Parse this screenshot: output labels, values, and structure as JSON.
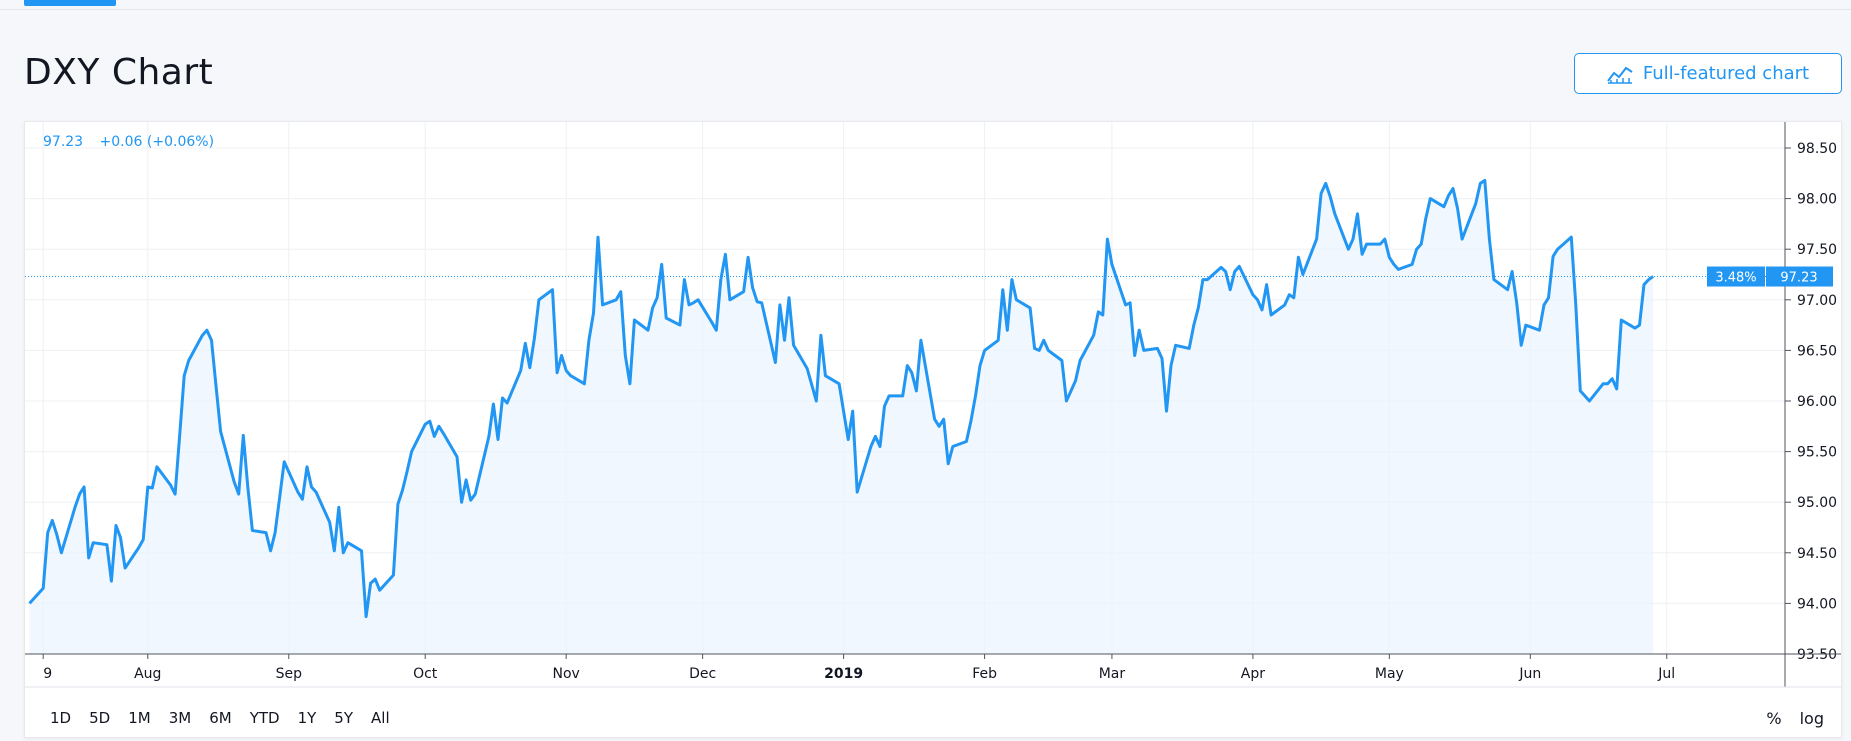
{
  "page": {
    "title": "DXY Chart",
    "full_chart_button": "Full-featured chart",
    "icons": {
      "full_chart": "chart-line-icon"
    }
  },
  "chart_header": {
    "price": "97.23",
    "change": "+0.06 (+0.06%)"
  },
  "range_buttons": [
    "1D",
    "5D",
    "1M",
    "3M",
    "6M",
    "YTD",
    "1Y",
    "5Y",
    "All"
  ],
  "scale_options": {
    "percent": "%",
    "log": "log"
  },
  "last_price_label": {
    "percent": "3.48%",
    "value": "97.23"
  },
  "colors": {
    "line": "#2196f3",
    "fill": "#eaf3fd",
    "accent": "#2196f3",
    "grid": "#eef0f3"
  },
  "chart_data": {
    "type": "area",
    "title": "DXY Chart",
    "xlabel": "",
    "ylabel": "",
    "ylim": [
      93.5,
      98.5
    ],
    "grid": true,
    "y_ticks": [
      "93.50",
      "94.00",
      "94.50",
      "95.00",
      "95.50",
      "96.00",
      "96.50",
      "97.00",
      "97.50",
      "98.00",
      "98.50"
    ],
    "x_ticks": [
      {
        "label": "9",
        "date": "2018-07-09",
        "bold": false
      },
      {
        "label": "Aug",
        "date": "2018-08-01",
        "bold": false
      },
      {
        "label": "Sep",
        "date": "2018-09-01",
        "bold": false
      },
      {
        "label": "Oct",
        "date": "2018-10-01",
        "bold": false
      },
      {
        "label": "Nov",
        "date": "2018-11-01",
        "bold": false
      },
      {
        "label": "Dec",
        "date": "2018-12-01",
        "bold": false
      },
      {
        "label": "2019",
        "date": "2019-01-01",
        "bold": true
      },
      {
        "label": "Feb",
        "date": "2019-02-01",
        "bold": false
      },
      {
        "label": "Mar",
        "date": "2019-03-01",
        "bold": false
      },
      {
        "label": "Apr",
        "date": "2019-04-01",
        "bold": false
      },
      {
        "label": "May",
        "date": "2019-05-01",
        "bold": false
      },
      {
        "label": "Jun",
        "date": "2019-06-01",
        "bold": false
      },
      {
        "label": "Jul",
        "date": "2019-07-01",
        "bold": false
      }
    ],
    "last_value": 97.23,
    "series": [
      {
        "points": [
          [
            "2018-07-06",
            94.0
          ],
          [
            "2018-07-09",
            94.15
          ],
          [
            "2018-07-10",
            94.7
          ],
          [
            "2018-07-11",
            94.82
          ],
          [
            "2018-07-12",
            94.68
          ],
          [
            "2018-07-13",
            94.5
          ],
          [
            "2018-07-16",
            94.95
          ],
          [
            "2018-07-17",
            95.08
          ],
          [
            "2018-07-18",
            95.15
          ],
          [
            "2018-07-19",
            94.45
          ],
          [
            "2018-07-20",
            94.6
          ],
          [
            "2018-07-23",
            94.58
          ],
          [
            "2018-07-24",
            94.22
          ],
          [
            "2018-07-25",
            94.77
          ],
          [
            "2018-07-26",
            94.65
          ],
          [
            "2018-07-27",
            94.35
          ],
          [
            "2018-07-30",
            94.55
          ],
          [
            "2018-07-31",
            94.63
          ],
          [
            "2018-08-01",
            95.15
          ],
          [
            "2018-08-02",
            95.14
          ],
          [
            "2018-08-03",
            95.35
          ],
          [
            "2018-08-06",
            95.17
          ],
          [
            "2018-08-07",
            95.08
          ],
          [
            "2018-08-08",
            95.65
          ],
          [
            "2018-08-09",
            96.25
          ],
          [
            "2018-08-10",
            96.4
          ],
          [
            "2018-08-13",
            96.65
          ],
          [
            "2018-08-14",
            96.7
          ],
          [
            "2018-08-15",
            96.6
          ],
          [
            "2018-08-16",
            96.15
          ],
          [
            "2018-08-17",
            95.7
          ],
          [
            "2018-08-20",
            95.2
          ],
          [
            "2018-08-21",
            95.08
          ],
          [
            "2018-08-22",
            95.66
          ],
          [
            "2018-08-23",
            95.15
          ],
          [
            "2018-08-24",
            94.72
          ],
          [
            "2018-08-27",
            94.7
          ],
          [
            "2018-08-28",
            94.52
          ],
          [
            "2018-08-29",
            94.7
          ],
          [
            "2018-08-30",
            95.05
          ],
          [
            "2018-08-31",
            95.4
          ],
          [
            "2018-09-03",
            95.1
          ],
          [
            "2018-09-04",
            95.03
          ],
          [
            "2018-09-05",
            95.35
          ],
          [
            "2018-09-06",
            95.15
          ],
          [
            "2018-09-07",
            95.1
          ],
          [
            "2018-09-10",
            94.8
          ],
          [
            "2018-09-11",
            94.52
          ],
          [
            "2018-09-12",
            94.95
          ],
          [
            "2018-09-13",
            94.5
          ],
          [
            "2018-09-14",
            94.6
          ],
          [
            "2018-09-17",
            94.52
          ],
          [
            "2018-09-18",
            93.87
          ],
          [
            "2018-09-19",
            94.2
          ],
          [
            "2018-09-20",
            94.24
          ],
          [
            "2018-09-21",
            94.13
          ],
          [
            "2018-09-24",
            94.28
          ],
          [
            "2018-09-25",
            94.98
          ],
          [
            "2018-09-26",
            95.12
          ],
          [
            "2018-09-27",
            95.3
          ],
          [
            "2018-09-28",
            95.5
          ],
          [
            "2018-10-01",
            95.77
          ],
          [
            "2018-10-02",
            95.8
          ],
          [
            "2018-10-03",
            95.65
          ],
          [
            "2018-10-04",
            95.75
          ],
          [
            "2018-10-05",
            95.68
          ],
          [
            "2018-10-08",
            95.45
          ],
          [
            "2018-10-09",
            95.0
          ],
          [
            "2018-10-10",
            95.22
          ],
          [
            "2018-10-11",
            95.02
          ],
          [
            "2018-10-12",
            95.08
          ],
          [
            "2018-10-15",
            95.65
          ],
          [
            "2018-10-16",
            95.97
          ],
          [
            "2018-10-17",
            95.62
          ],
          [
            "2018-10-18",
            96.03
          ],
          [
            "2018-10-19",
            95.98
          ],
          [
            "2018-10-22",
            96.3
          ],
          [
            "2018-10-23",
            96.57
          ],
          [
            "2018-10-24",
            96.33
          ],
          [
            "2018-10-25",
            96.62
          ],
          [
            "2018-10-26",
            97.0
          ],
          [
            "2018-10-29",
            97.1
          ],
          [
            "2018-10-30",
            96.28
          ],
          [
            "2018-10-31",
            96.45
          ],
          [
            "2018-11-01",
            96.3
          ],
          [
            "2018-11-02",
            96.25
          ],
          [
            "2018-11-05",
            96.17
          ],
          [
            "2018-11-06",
            96.6
          ],
          [
            "2018-11-07",
            96.87
          ],
          [
            "2018-11-08",
            97.62
          ],
          [
            "2018-11-09",
            96.95
          ],
          [
            "2018-11-12",
            97.0
          ],
          [
            "2018-11-13",
            97.08
          ],
          [
            "2018-11-14",
            96.45
          ],
          [
            "2018-11-15",
            96.17
          ],
          [
            "2018-11-16",
            96.8
          ],
          [
            "2018-11-19",
            96.7
          ],
          [
            "2018-11-20",
            96.92
          ],
          [
            "2018-11-21",
            97.02
          ],
          [
            "2018-11-22",
            97.35
          ],
          [
            "2018-11-23",
            96.82
          ],
          [
            "2018-11-26",
            96.75
          ],
          [
            "2018-11-27",
            97.2
          ],
          [
            "2018-11-28",
            96.95
          ],
          [
            "2018-11-29",
            96.97
          ],
          [
            "2018-11-30",
            97.0
          ],
          [
            "2018-12-03",
            96.78
          ],
          [
            "2018-12-04",
            96.7
          ],
          [
            "2018-12-05",
            97.2
          ],
          [
            "2018-12-06",
            97.45
          ],
          [
            "2018-12-07",
            97.0
          ],
          [
            "2018-12-10",
            97.08
          ],
          [
            "2018-12-11",
            97.42
          ],
          [
            "2018-12-12",
            97.12
          ],
          [
            "2018-12-13",
            96.98
          ],
          [
            "2018-12-14",
            96.97
          ],
          [
            "2018-12-17",
            96.38
          ],
          [
            "2018-12-18",
            96.95
          ],
          [
            "2018-12-19",
            96.6
          ],
          [
            "2018-12-20",
            97.02
          ],
          [
            "2018-12-21",
            96.55
          ],
          [
            "2018-12-24",
            96.32
          ],
          [
            "2018-12-26",
            96.0
          ],
          [
            "2018-12-27",
            96.65
          ],
          [
            "2018-12-28",
            96.25
          ],
          [
            "2018-12-31",
            96.17
          ],
          [
            "2019-01-02",
            95.62
          ],
          [
            "2019-01-03",
            95.9
          ],
          [
            "2019-01-04",
            95.1
          ],
          [
            "2019-01-07",
            95.55
          ],
          [
            "2019-01-08",
            95.65
          ],
          [
            "2019-01-09",
            95.55
          ],
          [
            "2019-01-10",
            95.95
          ],
          [
            "2019-01-11",
            96.05
          ],
          [
            "2019-01-14",
            96.05
          ],
          [
            "2019-01-15",
            96.35
          ],
          [
            "2019-01-16",
            96.28
          ],
          [
            "2019-01-17",
            96.1
          ],
          [
            "2019-01-18",
            96.6
          ],
          [
            "2019-01-21",
            95.82
          ],
          [
            "2019-01-22",
            95.75
          ],
          [
            "2019-01-23",
            95.82
          ],
          [
            "2019-01-24",
            95.38
          ],
          [
            "2019-01-25",
            95.55
          ],
          [
            "2019-01-28",
            95.6
          ],
          [
            "2019-01-29",
            95.8
          ],
          [
            "2019-01-30",
            96.05
          ],
          [
            "2019-01-31",
            96.35
          ],
          [
            "2019-02-01",
            96.5
          ],
          [
            "2019-02-04",
            96.6
          ],
          [
            "2019-02-05",
            97.1
          ],
          [
            "2019-02-06",
            96.7
          ],
          [
            "2019-02-07",
            97.2
          ],
          [
            "2019-02-08",
            97.0
          ],
          [
            "2019-02-11",
            96.92
          ],
          [
            "2019-02-12",
            96.52
          ],
          [
            "2019-02-13",
            96.5
          ],
          [
            "2019-02-14",
            96.6
          ],
          [
            "2019-02-15",
            96.5
          ],
          [
            "2019-02-18",
            96.4
          ],
          [
            "2019-02-19",
            96.0
          ],
          [
            "2019-02-20",
            96.1
          ],
          [
            "2019-02-21",
            96.2
          ],
          [
            "2019-02-22",
            96.4
          ],
          [
            "2019-02-25",
            96.65
          ],
          [
            "2019-02-26",
            96.88
          ],
          [
            "2019-02-27",
            96.85
          ],
          [
            "2019-02-28",
            97.6
          ],
          [
            "2019-03-01",
            97.35
          ],
          [
            "2019-03-04",
            96.95
          ],
          [
            "2019-03-05",
            96.97
          ],
          [
            "2019-03-06",
            96.45
          ],
          [
            "2019-03-07",
            96.7
          ],
          [
            "2019-03-08",
            96.5
          ],
          [
            "2019-03-11",
            96.52
          ],
          [
            "2019-03-12",
            96.42
          ],
          [
            "2019-03-13",
            95.9
          ],
          [
            "2019-03-14",
            96.35
          ],
          [
            "2019-03-15",
            96.55
          ],
          [
            "2019-03-18",
            96.52
          ],
          [
            "2019-03-19",
            96.75
          ],
          [
            "2019-03-20",
            96.92
          ],
          [
            "2019-03-21",
            97.2
          ],
          [
            "2019-03-22",
            97.2
          ],
          [
            "2019-03-25",
            97.32
          ],
          [
            "2019-03-26",
            97.28
          ],
          [
            "2019-03-27",
            97.1
          ],
          [
            "2019-03-28",
            97.28
          ],
          [
            "2019-03-29",
            97.33
          ],
          [
            "2019-04-01",
            97.05
          ],
          [
            "2019-04-02",
            97.0
          ],
          [
            "2019-04-03",
            96.9
          ],
          [
            "2019-04-04",
            97.15
          ],
          [
            "2019-04-05",
            96.85
          ],
          [
            "2019-04-08",
            96.95
          ],
          [
            "2019-04-09",
            97.05
          ],
          [
            "2019-04-10",
            97.02
          ],
          [
            "2019-04-11",
            97.42
          ],
          [
            "2019-04-12",
            97.25
          ],
          [
            "2019-04-15",
            97.6
          ],
          [
            "2019-04-16",
            98.05
          ],
          [
            "2019-04-17",
            98.15
          ],
          [
            "2019-04-18",
            98.02
          ],
          [
            "2019-04-19",
            97.85
          ],
          [
            "2019-04-22",
            97.5
          ],
          [
            "2019-04-23",
            97.6
          ],
          [
            "2019-04-24",
            97.85
          ],
          [
            "2019-04-25",
            97.45
          ],
          [
            "2019-04-26",
            97.55
          ],
          [
            "2019-04-29",
            97.55
          ],
          [
            "2019-04-30",
            97.6
          ],
          [
            "2019-05-01",
            97.42
          ],
          [
            "2019-05-02",
            97.35
          ],
          [
            "2019-05-03",
            97.3
          ],
          [
            "2019-05-06",
            97.35
          ],
          [
            "2019-05-07",
            97.5
          ],
          [
            "2019-05-08",
            97.55
          ],
          [
            "2019-05-09",
            97.8
          ],
          [
            "2019-05-10",
            98.0
          ],
          [
            "2019-05-13",
            97.92
          ],
          [
            "2019-05-14",
            98.03
          ],
          [
            "2019-05-15",
            98.1
          ],
          [
            "2019-05-16",
            97.9
          ],
          [
            "2019-05-17",
            97.6
          ],
          [
            "2019-05-20",
            97.95
          ],
          [
            "2019-05-21",
            98.15
          ],
          [
            "2019-05-22",
            98.18
          ],
          [
            "2019-05-23",
            97.6
          ],
          [
            "2019-05-24",
            97.2
          ],
          [
            "2019-05-27",
            97.1
          ],
          [
            "2019-05-28",
            97.28
          ],
          [
            "2019-05-29",
            96.97
          ],
          [
            "2019-05-30",
            96.55
          ],
          [
            "2019-05-31",
            96.75
          ],
          [
            "2019-06-03",
            96.7
          ],
          [
            "2019-06-04",
            96.95
          ],
          [
            "2019-06-05",
            97.02
          ],
          [
            "2019-06-06",
            97.43
          ],
          [
            "2019-06-07",
            97.5
          ],
          [
            "2019-06-10",
            97.62
          ],
          [
            "2019-06-11",
            96.95
          ],
          [
            "2019-06-12",
            96.1
          ],
          [
            "2019-06-13",
            96.05
          ],
          [
            "2019-06-14",
            96.0
          ],
          [
            "2019-06-17",
            96.17
          ],
          [
            "2019-06-18",
            96.17
          ],
          [
            "2019-06-19",
            96.22
          ],
          [
            "2019-06-20",
            96.12
          ],
          [
            "2019-06-21",
            96.8
          ],
          [
            "2019-06-24",
            96.72
          ],
          [
            "2019-06-25",
            96.75
          ],
          [
            "2019-06-26",
            97.15
          ],
          [
            "2019-06-27",
            97.2
          ],
          [
            "2019-06-28",
            97.23
          ]
        ]
      }
    ]
  }
}
